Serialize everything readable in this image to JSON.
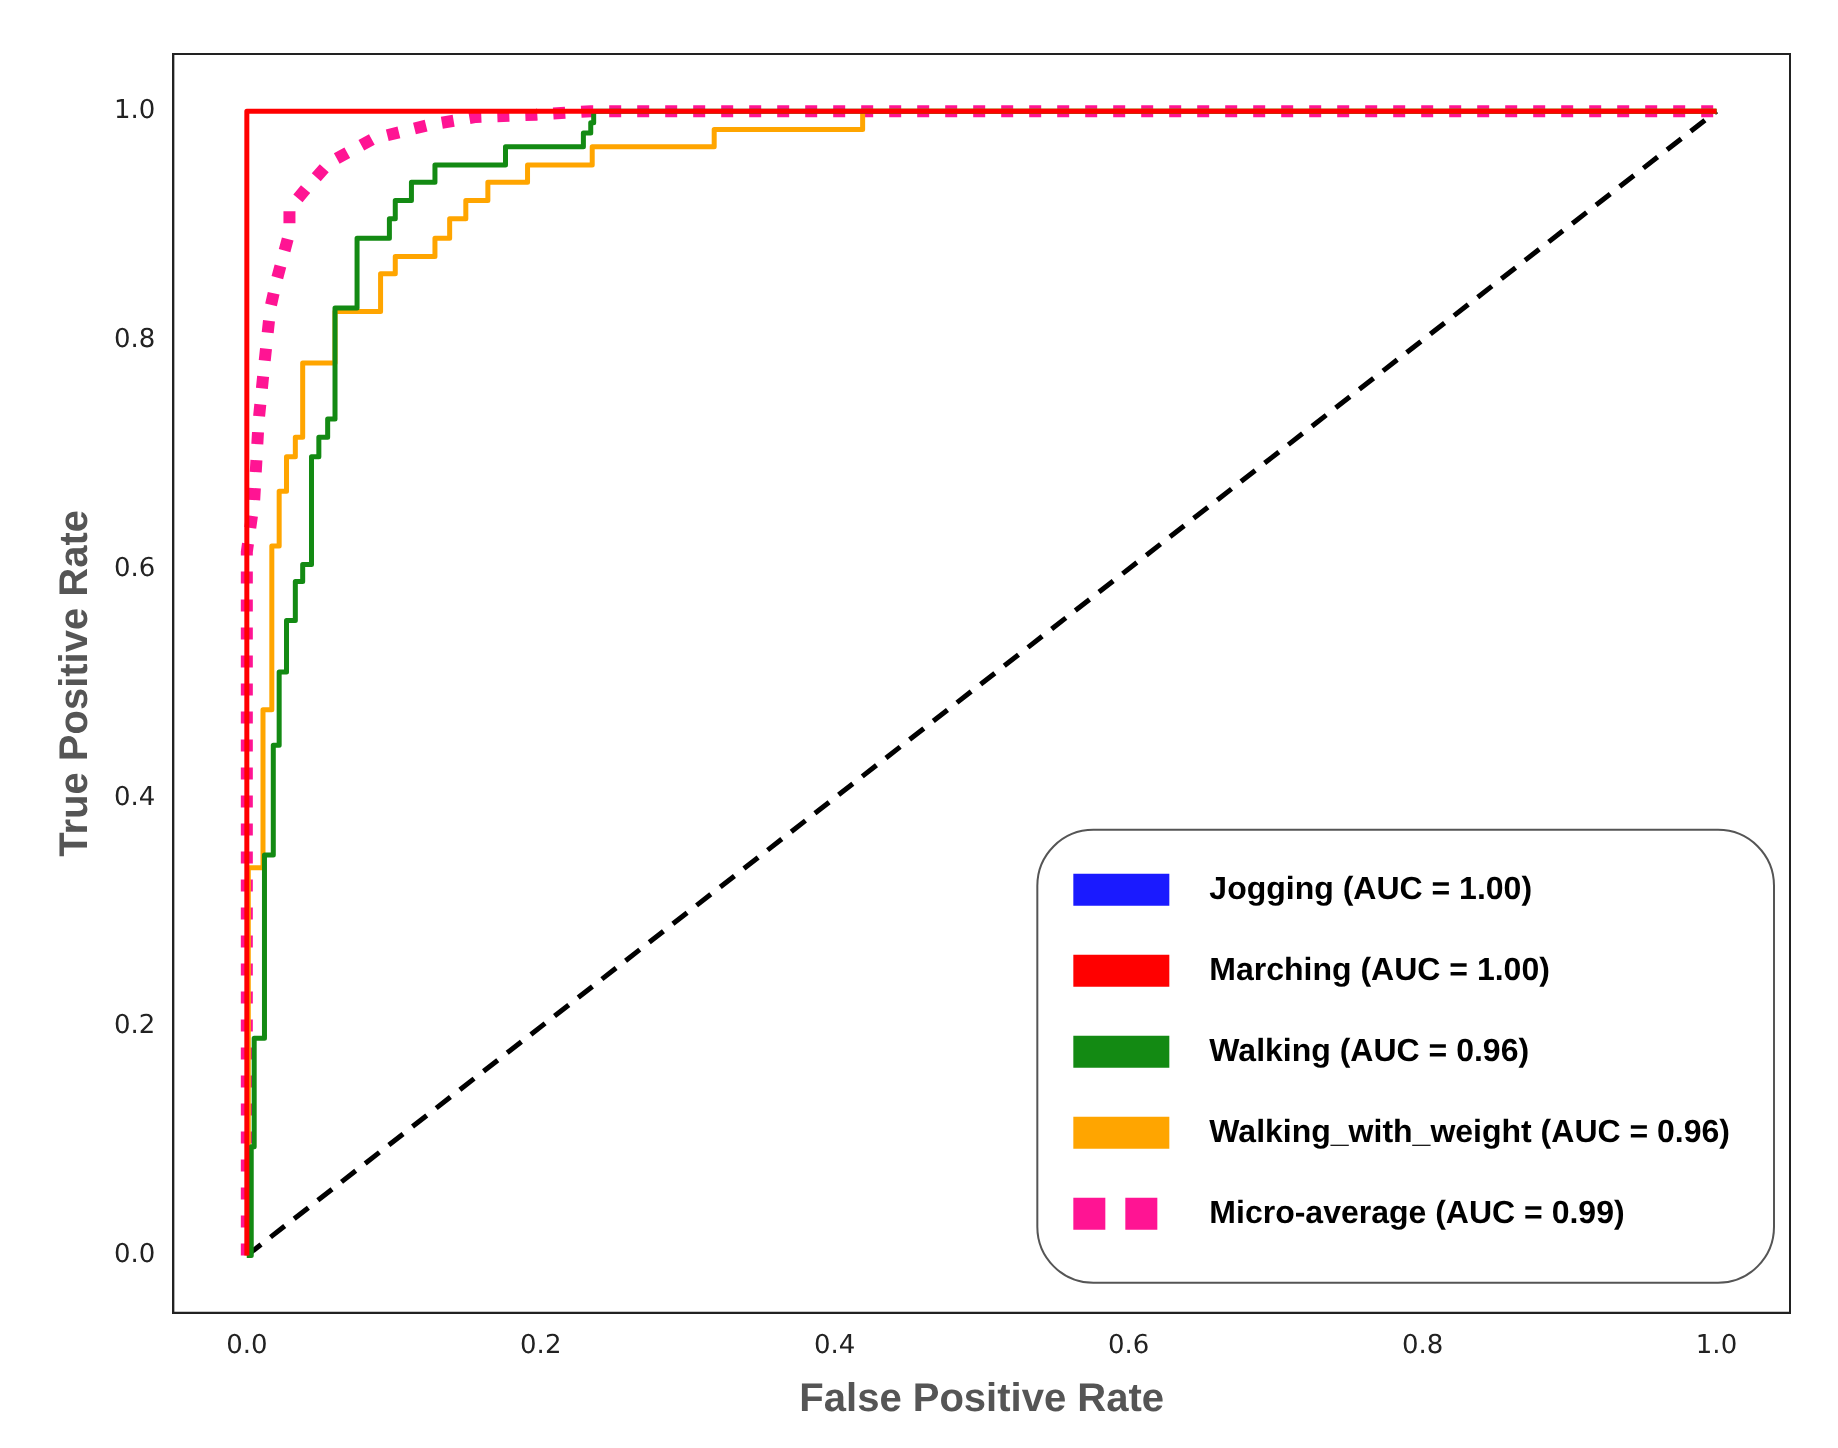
{
  "chart_data": {
    "type": "line",
    "xlabel": "False Positive Rate",
    "ylabel": "True Positive Rate",
    "xlim": [
      -0.05,
      1.05
    ],
    "ylim": [
      -0.05,
      1.05
    ],
    "xticks": [
      {
        "value": 0,
        "label": "0.0"
      },
      0.2,
      0.4,
      0.6,
      0.8,
      {
        "value": 1,
        "label": "1.0"
      }
    ],
    "yticks": [
      {
        "value": 0,
        "label": "0.0"
      },
      0.2,
      0.4,
      0.6,
      0.8,
      {
        "value": 1,
        "label": "1.0"
      }
    ],
    "grid": false,
    "legend": "bottom right",
    "marker": "none",
    "series": [
      {
        "name": "Jogging (AUC = 1.00)",
        "color": "#1a1aff"
      },
      {
        "name": "Marching (AUC = 1.00)",
        "color": "#ff0000",
        "x": [
          0,
          0,
          1
        ],
        "values": [
          0,
          1,
          1
        ]
      },
      {
        "name": "Walking (AUC = 0.96)",
        "color": "#138a13",
        "type": "step",
        "x": [
          0,
          0.003,
          0.003,
          0.005,
          0.005,
          0.012,
          0.012,
          0.018,
          0.018,
          0.022,
          0.022,
          0.027,
          0.027,
          0.033,
          0.033,
          0.038,
          0.038,
          0.044,
          0.044,
          0.049,
          0.049,
          0.055,
          0.055,
          0.06,
          0.06,
          0.075,
          0.075,
          0.097,
          0.097,
          0.101,
          0.101,
          0.112,
          0.112,
          0.128,
          0.128,
          0.176,
          0.176,
          0.229,
          0.229,
          0.234,
          0.234,
          0.236,
          0.236,
          1
        ],
        "values": [
          0,
          0,
          0.095,
          0.095,
          0.19,
          0.19,
          0.35,
          0.35,
          0.446,
          0.446,
          0.51,
          0.51,
          0.555,
          0.555,
          0.589,
          0.589,
          0.604,
          0.604,
          0.698,
          0.698,
          0.715,
          0.715,
          0.731,
          0.731,
          0.828,
          0.828,
          0.889,
          0.889,
          0.906,
          0.906,
          0.922,
          0.922,
          0.938,
          0.938,
          0.953,
          0.953,
          0.969,
          0.969,
          0.981,
          0.981,
          0.99,
          0.99,
          1,
          1
        ]
      },
      {
        "name": "Walking_with_weight (AUC = 0.96)",
        "color": "#ffa500",
        "type": "step",
        "x": [
          0,
          0.001,
          0.001,
          0.011,
          0.011,
          0.017,
          0.017,
          0.022,
          0.022,
          0.027,
          0.027,
          0.033,
          0.033,
          0.038,
          0.038,
          0.06,
          0.06,
          0.091,
          0.091,
          0.101,
          0.101,
          0.128,
          0.128,
          0.138,
          0.138,
          0.149,
          0.149,
          0.164,
          0.164,
          0.191,
          0.191,
          0.235,
          0.235,
          0.318,
          0.318,
          0.419,
          0.419,
          1
        ],
        "values": [
          0,
          0,
          0.339,
          0.339,
          0.477,
          0.477,
          0.62,
          0.62,
          0.668,
          0.668,
          0.698,
          0.698,
          0.715,
          0.715,
          0.78,
          0.78,
          0.825,
          0.825,
          0.858,
          0.858,
          0.873,
          0.873,
          0.889,
          0.889,
          0.906,
          0.906,
          0.922,
          0.922,
          0.938,
          0.938,
          0.953,
          0.953,
          0.969,
          0.969,
          0.984,
          0.984,
          1,
          1
        ]
      },
      {
        "name": "Micro-average (AUC = 0.99)",
        "color": "#ff1493",
        "line_style": "dotted",
        "x": [
          0,
          0,
          0.005,
          0.008,
          0.012,
          0.016,
          0.02,
          0.029,
          0.029,
          0.04,
          0.056,
          0.086,
          0.124,
          0.156,
          0.197,
          0.234,
          1
        ],
        "values": [
          0,
          0.615,
          0.66,
          0.729,
          0.78,
          0.828,
          0.851,
          0.894,
          0.915,
          0.932,
          0.955,
          0.976,
          0.988,
          0.995,
          0.997,
          1,
          1
        ]
      },
      {
        "color": "#000000",
        "line_style": "dashed",
        "x": [
          0,
          1
        ],
        "values": [
          0,
          1
        ]
      }
    ]
  }
}
